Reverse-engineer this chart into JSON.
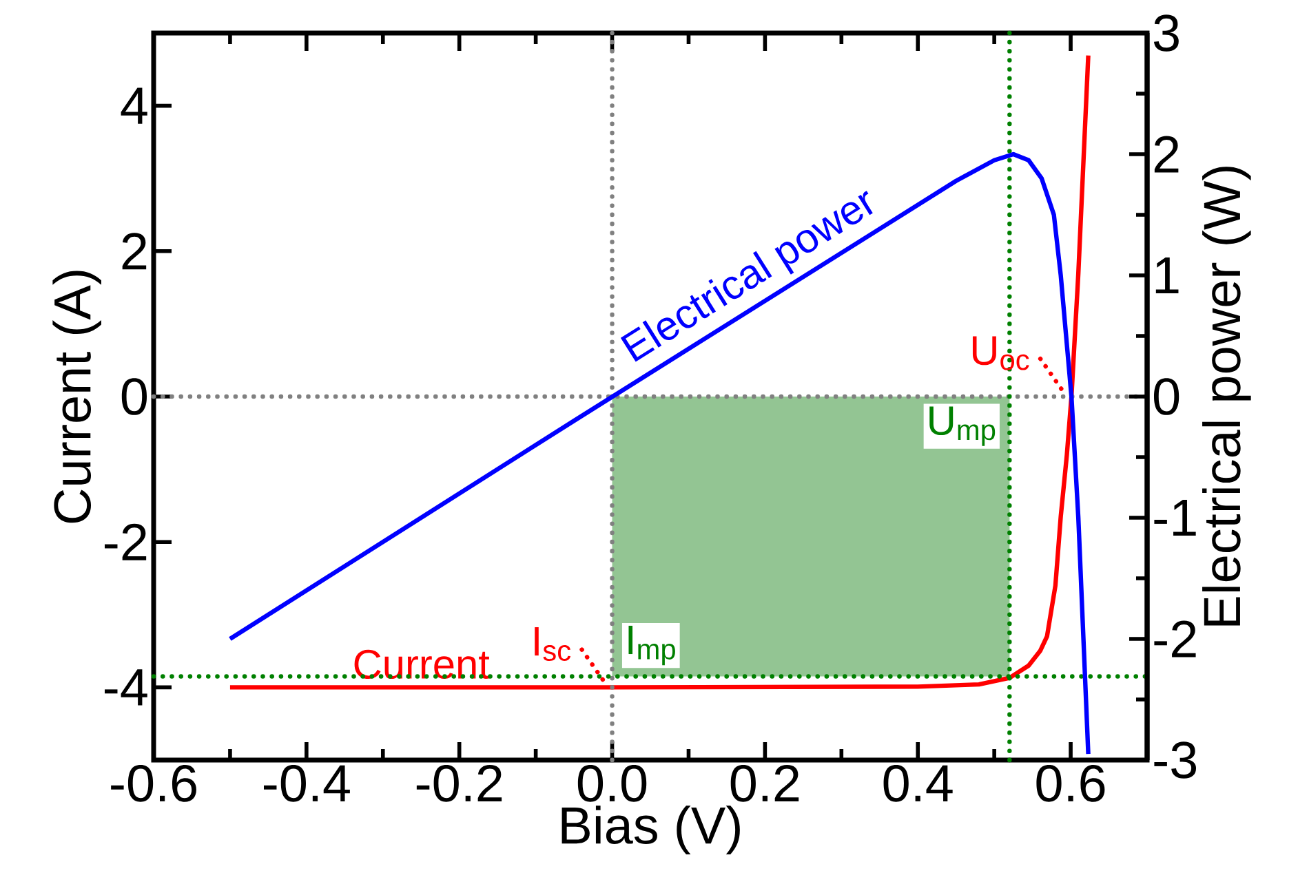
{
  "chart_data": {
    "type": "line",
    "xlabel": "Bias (V)",
    "ylabel": "Current (A)",
    "y2label": "Electrical power (W)",
    "xlim": [
      -0.6,
      0.7
    ],
    "ylim": [
      -5,
      5
    ],
    "y2lim": [
      -3,
      3
    ],
    "xticks": [
      -0.6,
      -0.4,
      -0.2,
      {
        "value": 0,
        "label": "0.0"
      },
      0.2,
      0.4,
      0.6,
      {
        "value": -0.5,
        "label": null
      },
      {
        "value": -0.3,
        "label": null
      },
      {
        "value": -0.1,
        "label": null
      },
      {
        "value": 0.1,
        "label": null
      },
      {
        "value": 0.3,
        "label": null
      },
      {
        "value": 0.5,
        "label": null
      }
    ],
    "yticks": [
      -4,
      -2,
      0,
      2,
      4
    ],
    "y2ticks": [
      -3,
      -2,
      -1,
      0,
      1,
      2,
      3,
      {
        "value": -2.5,
        "label": null
      },
      {
        "value": -1.5,
        "label": null
      },
      {
        "value": -0.5,
        "label": null
      },
      {
        "value": 0.5,
        "label": null
      },
      {
        "value": 1.5,
        "label": null
      },
      {
        "value": 2.5,
        "label": null
      }
    ],
    "series": [
      {
        "type": "area",
        "color": "#93c593",
        "x": [
          0,
          0.52
        ],
        "values": [
          -3.85,
          -3.85
        ]
      },
      {
        "name": "Current",
        "color": "#ff0000",
        "x": [
          -0.5,
          0.0,
          0.4,
          0.48,
          0.52,
          0.545,
          0.56,
          0.569,
          0.58,
          0.587,
          0.595,
          0.601,
          0.61,
          0.623
        ],
        "values": [
          -4.0,
          -4.0,
          -3.99,
          -3.96,
          -3.87,
          -3.7,
          -3.5,
          -3.3,
          -2.6,
          -1.65,
          -0.8,
          0,
          1.69,
          4.69
        ]
      },
      {
        "name": "Electrical power",
        "color": "#0000ff",
        "axis": "y2",
        "x": [
          -0.5,
          -0.05,
          0.45,
          0.5,
          0.525,
          0.545,
          0.562,
          0.578,
          0.587,
          0.601,
          0.61,
          0.623
        ],
        "values": [
          -2.0,
          -0.2,
          1.78,
          1.95,
          2.0,
          1.95,
          1.8,
          1.5,
          1.0,
          0,
          -1.0,
          -2.95
        ]
      }
    ],
    "ref_lines": [
      {
        "axis": "x",
        "value": 0,
        "color": "#808080",
        "line_style": "dotted"
      },
      {
        "axis": "y",
        "value": 0,
        "color": "#808080",
        "line_style": "dotted"
      },
      {
        "axis": "x",
        "value": 0.52,
        "label": "U$_{mp}$",
        "color": "#008000",
        "line_style": "dotted"
      },
      {
        "axis": "y",
        "value": -3.85,
        "label": "I$_{mp}$",
        "color": "#008000",
        "line_style": "dotted"
      }
    ],
    "annotations": [
      {
        "text": "U$_{oc}$",
        "x": 0.6,
        "y": 0
      },
      {
        "text": "I$_{sc}$",
        "x": 0,
        "y": -4
      }
    ]
  }
}
